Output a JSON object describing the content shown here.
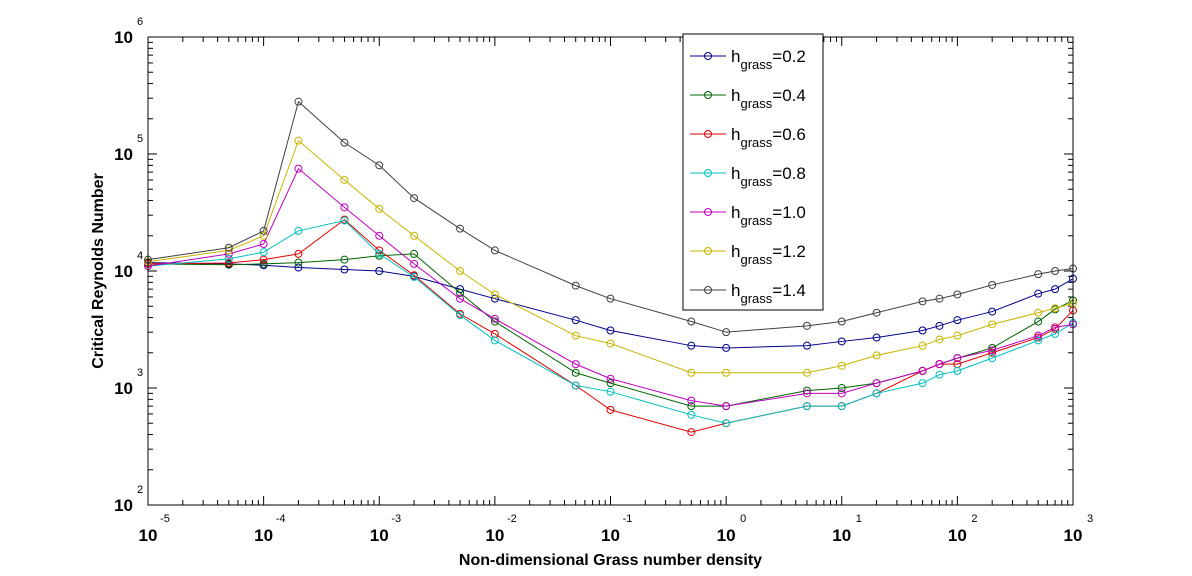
{
  "chart_data": {
    "type": "line",
    "title": "",
    "xlabel": "Non-dimensional Grass number density",
    "ylabel": "Critical Reynolds Number",
    "xscale": "log",
    "yscale": "log",
    "xlim": [
      1e-05,
      1000
    ],
    "ylim": [
      100,
      1000000
    ],
    "x_tick_exponents": [
      "-5",
      "-4",
      "-3",
      "-2",
      "-1",
      "0",
      "1",
      "2",
      "3"
    ],
    "y_tick_exponents": [
      "2",
      "3",
      "4",
      "5",
      "6"
    ],
    "tick_base": "10",
    "grid": false,
    "legend_position": "top-center",
    "legend_prefix": "h",
    "legend_subscript": "grass",
    "x": [
      1e-05,
      5e-05,
      0.0001,
      0.0002,
      0.0005,
      0.001,
      0.002,
      0.005,
      0.01,
      0.05,
      0.1,
      0.5,
      1,
      5,
      10,
      20,
      50,
      70,
      100,
      200,
      500,
      700,
      1000
    ],
    "series": [
      {
        "name": "=0.2",
        "color": "#00008b",
        "values": [
          11800,
          11500,
          11200,
          10700,
          10300,
          10000,
          9000,
          7000,
          5800,
          3800,
          3100,
          2300,
          2200,
          2300,
          2500,
          2700,
          3100,
          3400,
          3800,
          4500,
          6400,
          7000,
          8600
        ]
      },
      {
        "name": "=0.4",
        "color": "#006400",
        "values": [
          11500,
          11300,
          11500,
          11800,
          12500,
          13500,
          14000,
          6500,
          3700,
          1350,
          1100,
          700,
          700,
          950,
          1000,
          1100,
          1400,
          1600,
          1800,
          2200,
          3700,
          4700,
          5600
        ]
      },
      {
        "name": "=0.6",
        "color": "#e00000",
        "values": [
          11500,
          11700,
          12500,
          14000,
          27500,
          15000,
          9200,
          4300,
          2900,
          1050,
          650,
          420,
          500,
          700,
          700,
          900,
          1400,
          1600,
          1600,
          2000,
          2700,
          3200,
          4600
        ]
      },
      {
        "name": "=0.8",
        "color": "#00c0c0",
        "values": [
          11000,
          12700,
          14500,
          22000,
          27000,
          14000,
          8900,
          4200,
          2550,
          1050,
          930,
          590,
          500,
          700,
          700,
          900,
          1100,
          1300,
          1400,
          1800,
          2550,
          2900,
          3600
        ]
      },
      {
        "name": "=1.0",
        "color": "#c000c0",
        "values": [
          11000,
          14000,
          17000,
          75000,
          35000,
          20000,
          11500,
          5800,
          3900,
          1600,
          1200,
          780,
          700,
          900,
          900,
          1100,
          1400,
          1600,
          1800,
          2100,
          2800,
          3300,
          3500
        ]
      },
      {
        "name": "=1.2",
        "color": "#c8b400",
        "values": [
          12000,
          15000,
          20000,
          130000,
          60000,
          34000,
          20000,
          10000,
          6300,
          2800,
          2400,
          1350,
          1350,
          1350,
          1550,
          1900,
          2300,
          2600,
          2800,
          3500,
          4400,
          4800,
          5300
        ]
      },
      {
        "name": "=1.4",
        "color": "#404040",
        "values": [
          12500,
          15800,
          22000,
          280000,
          125000,
          80000,
          42000,
          23000,
          15000,
          7500,
          5800,
          3700,
          3000,
          3400,
          3700,
          4400,
          5500,
          5800,
          6300,
          7600,
          9400,
          10000,
          10500
        ]
      }
    ]
  }
}
